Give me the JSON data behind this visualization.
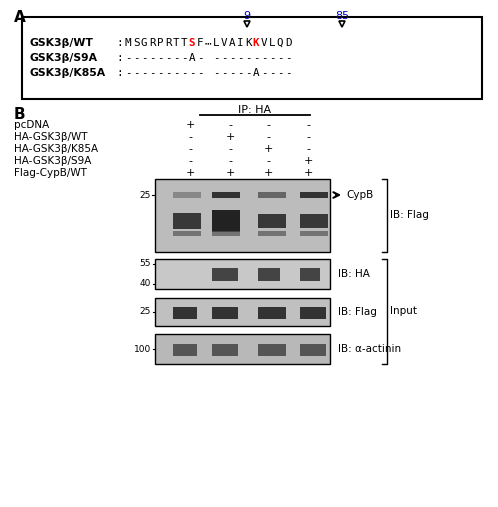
{
  "panel_A_label": "A",
  "panel_B_label": "B",
  "seq_num1": "9",
  "seq_num2": "85",
  "row1_label": "GSK3β/WT",
  "row2_label": "GSK3β/S9A",
  "row3_label": "GSK3β/K85A",
  "ip_label": "IP: HA",
  "sample_rows": [
    "pcDNA",
    "HA-GSK3β/WT",
    "HA-GSK3β/K85A",
    "HA-GSK3β/S9A",
    "Flag-CypB/WT"
  ],
  "cols_signs": [
    [
      "+",
      "-",
      "-",
      "-"
    ],
    [
      "-",
      "+",
      "-",
      "-"
    ],
    [
      "-",
      "-",
      "+",
      "-"
    ],
    [
      "-",
      "-",
      "-",
      "+"
    ],
    [
      "+",
      "+",
      "+",
      "+"
    ]
  ],
  "blot1_label": "IB: Flag",
  "blot2_label": "IB: HA",
  "blot3_label": "IB: Flag",
  "blot4_label": "IB: α-actinin",
  "cypb_label": "CypB",
  "input_label": "Input",
  "bg_color": "#ffffff"
}
